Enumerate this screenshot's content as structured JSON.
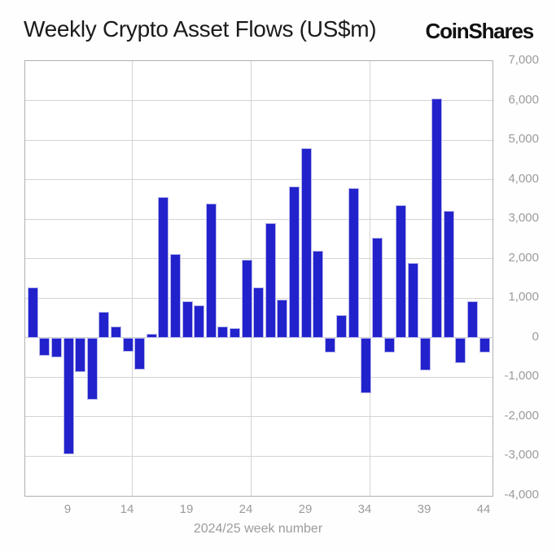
{
  "header": {
    "title": "Weekly Crypto Asset Flows (US$m)",
    "logo_text": "CoinShares"
  },
  "colors": {
    "bar_fill": "#2222cd",
    "bar_edge": "#b6b6ea",
    "grid": "#d4d4d4",
    "plot_border": "#b0b0b0",
    "axis_text": "#9b9b9b",
    "title_text": "#1b1b1b"
  },
  "chart_data": {
    "type": "bar",
    "title": "Weekly Crypto Asset Flows (US$m)",
    "xlabel": "2024/25 week number",
    "ylabel": "",
    "ylim": [
      -4000,
      7000
    ],
    "ytick_step": 1000,
    "ytick_labels": [
      "7,000",
      "6,000",
      "5,000",
      "4,000",
      "3,000",
      "2,000",
      "1,000",
      "0",
      "-1,000",
      "-2,000",
      "-3,000",
      "-4,000"
    ],
    "xtick_labels": [
      "9",
      "14",
      "19",
      "24",
      "29",
      "34",
      "39",
      "44"
    ],
    "xticks": [
      9,
      14,
      19,
      24,
      29,
      34,
      39,
      44
    ],
    "grid_x_weeks": [
      14,
      24,
      34
    ],
    "grid": "on",
    "legend": "none",
    "categories": [
      6,
      7,
      8,
      9,
      10,
      11,
      12,
      13,
      14,
      15,
      16,
      17,
      18,
      19,
      20,
      21,
      22,
      23,
      24,
      25,
      26,
      27,
      28,
      29,
      30,
      31,
      32,
      33,
      34,
      35,
      36,
      37,
      38,
      39,
      40,
      41,
      42,
      43,
      44
    ],
    "values": [
      1280,
      -460,
      -500,
      -2950,
      -870,
      -1570,
      660,
      290,
      -350,
      -810,
      100,
      3550,
      2110,
      930,
      830,
      3390,
      290,
      250,
      1980,
      1280,
      2910,
      970,
      3820,
      4790,
      2210,
      -370,
      580,
      3780,
      -1400,
      2520,
      -370,
      3350,
      1900,
      -830,
      6050,
      3220,
      -640,
      930,
      -370
    ]
  }
}
